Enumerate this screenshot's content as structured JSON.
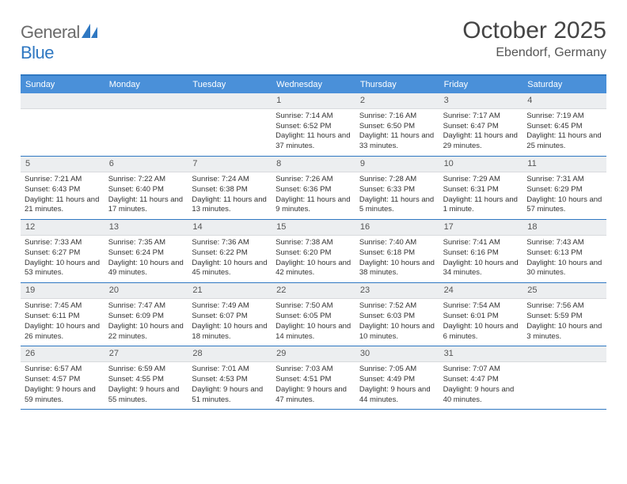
{
  "logo": {
    "general": "General",
    "blue": "Blue"
  },
  "title": "October 2025",
  "location": "Ebendorf, Germany",
  "colors": {
    "header_bg": "#4a90d9",
    "border": "#2f78c2",
    "daynum_bg": "#eceef0",
    "text": "#333333"
  },
  "day_headers": [
    "Sunday",
    "Monday",
    "Tuesday",
    "Wednesday",
    "Thursday",
    "Friday",
    "Saturday"
  ],
  "weeks": [
    [
      {
        "n": "",
        "empty": true
      },
      {
        "n": "",
        "empty": true
      },
      {
        "n": "",
        "empty": true
      },
      {
        "n": "1",
        "sunrise": "7:14 AM",
        "sunset": "6:52 PM",
        "daylight": "11 hours and 37 minutes."
      },
      {
        "n": "2",
        "sunrise": "7:16 AM",
        "sunset": "6:50 PM",
        "daylight": "11 hours and 33 minutes."
      },
      {
        "n": "3",
        "sunrise": "7:17 AM",
        "sunset": "6:47 PM",
        "daylight": "11 hours and 29 minutes."
      },
      {
        "n": "4",
        "sunrise": "7:19 AM",
        "sunset": "6:45 PM",
        "daylight": "11 hours and 25 minutes."
      }
    ],
    [
      {
        "n": "5",
        "sunrise": "7:21 AM",
        "sunset": "6:43 PM",
        "daylight": "11 hours and 21 minutes."
      },
      {
        "n": "6",
        "sunrise": "7:22 AM",
        "sunset": "6:40 PM",
        "daylight": "11 hours and 17 minutes."
      },
      {
        "n": "7",
        "sunrise": "7:24 AM",
        "sunset": "6:38 PM",
        "daylight": "11 hours and 13 minutes."
      },
      {
        "n": "8",
        "sunrise": "7:26 AM",
        "sunset": "6:36 PM",
        "daylight": "11 hours and 9 minutes."
      },
      {
        "n": "9",
        "sunrise": "7:28 AM",
        "sunset": "6:33 PM",
        "daylight": "11 hours and 5 minutes."
      },
      {
        "n": "10",
        "sunrise": "7:29 AM",
        "sunset": "6:31 PM",
        "daylight": "11 hours and 1 minute."
      },
      {
        "n": "11",
        "sunrise": "7:31 AM",
        "sunset": "6:29 PM",
        "daylight": "10 hours and 57 minutes."
      }
    ],
    [
      {
        "n": "12",
        "sunrise": "7:33 AM",
        "sunset": "6:27 PM",
        "daylight": "10 hours and 53 minutes."
      },
      {
        "n": "13",
        "sunrise": "7:35 AM",
        "sunset": "6:24 PM",
        "daylight": "10 hours and 49 minutes."
      },
      {
        "n": "14",
        "sunrise": "7:36 AM",
        "sunset": "6:22 PM",
        "daylight": "10 hours and 45 minutes."
      },
      {
        "n": "15",
        "sunrise": "7:38 AM",
        "sunset": "6:20 PM",
        "daylight": "10 hours and 42 minutes."
      },
      {
        "n": "16",
        "sunrise": "7:40 AM",
        "sunset": "6:18 PM",
        "daylight": "10 hours and 38 minutes."
      },
      {
        "n": "17",
        "sunrise": "7:41 AM",
        "sunset": "6:16 PM",
        "daylight": "10 hours and 34 minutes."
      },
      {
        "n": "18",
        "sunrise": "7:43 AM",
        "sunset": "6:13 PM",
        "daylight": "10 hours and 30 minutes."
      }
    ],
    [
      {
        "n": "19",
        "sunrise": "7:45 AM",
        "sunset": "6:11 PM",
        "daylight": "10 hours and 26 minutes."
      },
      {
        "n": "20",
        "sunrise": "7:47 AM",
        "sunset": "6:09 PM",
        "daylight": "10 hours and 22 minutes."
      },
      {
        "n": "21",
        "sunrise": "7:49 AM",
        "sunset": "6:07 PM",
        "daylight": "10 hours and 18 minutes."
      },
      {
        "n": "22",
        "sunrise": "7:50 AM",
        "sunset": "6:05 PM",
        "daylight": "10 hours and 14 minutes."
      },
      {
        "n": "23",
        "sunrise": "7:52 AM",
        "sunset": "6:03 PM",
        "daylight": "10 hours and 10 minutes."
      },
      {
        "n": "24",
        "sunrise": "7:54 AM",
        "sunset": "6:01 PM",
        "daylight": "10 hours and 6 minutes."
      },
      {
        "n": "25",
        "sunrise": "7:56 AM",
        "sunset": "5:59 PM",
        "daylight": "10 hours and 3 minutes."
      }
    ],
    [
      {
        "n": "26",
        "sunrise": "6:57 AM",
        "sunset": "4:57 PM",
        "daylight": "9 hours and 59 minutes."
      },
      {
        "n": "27",
        "sunrise": "6:59 AM",
        "sunset": "4:55 PM",
        "daylight": "9 hours and 55 minutes."
      },
      {
        "n": "28",
        "sunrise": "7:01 AM",
        "sunset": "4:53 PM",
        "daylight": "9 hours and 51 minutes."
      },
      {
        "n": "29",
        "sunrise": "7:03 AM",
        "sunset": "4:51 PM",
        "daylight": "9 hours and 47 minutes."
      },
      {
        "n": "30",
        "sunrise": "7:05 AM",
        "sunset": "4:49 PM",
        "daylight": "9 hours and 44 minutes."
      },
      {
        "n": "31",
        "sunrise": "7:07 AM",
        "sunset": "4:47 PM",
        "daylight": "9 hours and 40 minutes."
      },
      {
        "n": "",
        "empty": true
      }
    ]
  ]
}
